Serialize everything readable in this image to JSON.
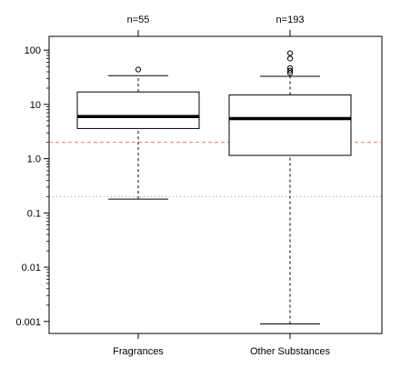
{
  "chart_data": {
    "type": "box",
    "y_scale": "log10",
    "ylim": [
      0.0006,
      180
    ],
    "yticks": [
      0.001,
      0.01,
      0.1,
      1.0,
      10,
      100
    ],
    "ytick_labels": [
      "0.001",
      "0.01",
      "0.1",
      "1.0",
      "10",
      "100"
    ],
    "categories": [
      "Fragrances",
      "Other Substances"
    ],
    "top_labels": [
      "n=55",
      "n=193"
    ],
    "boxes": [
      {
        "name": "Fragrances",
        "n": 55,
        "whisker_low": 0.18,
        "q1": 3.6,
        "median": 6.0,
        "q3": 17,
        "whisker_high": 34,
        "outliers": [
          44
        ]
      },
      {
        "name": "Other Substances",
        "n": 193,
        "whisker_low": 0.0009,
        "q1": 1.15,
        "median": 5.5,
        "q3": 15,
        "whisker_high": 33,
        "outliers": [
          38,
          42,
          47,
          70,
          88
        ]
      }
    ],
    "reference_lines": [
      {
        "value": 2.0,
        "style": "dashed",
        "color": "#e8856b"
      },
      {
        "value": 0.2,
        "style": "dotted",
        "color": "#999999"
      }
    ],
    "grid": false,
    "legend": "none"
  }
}
